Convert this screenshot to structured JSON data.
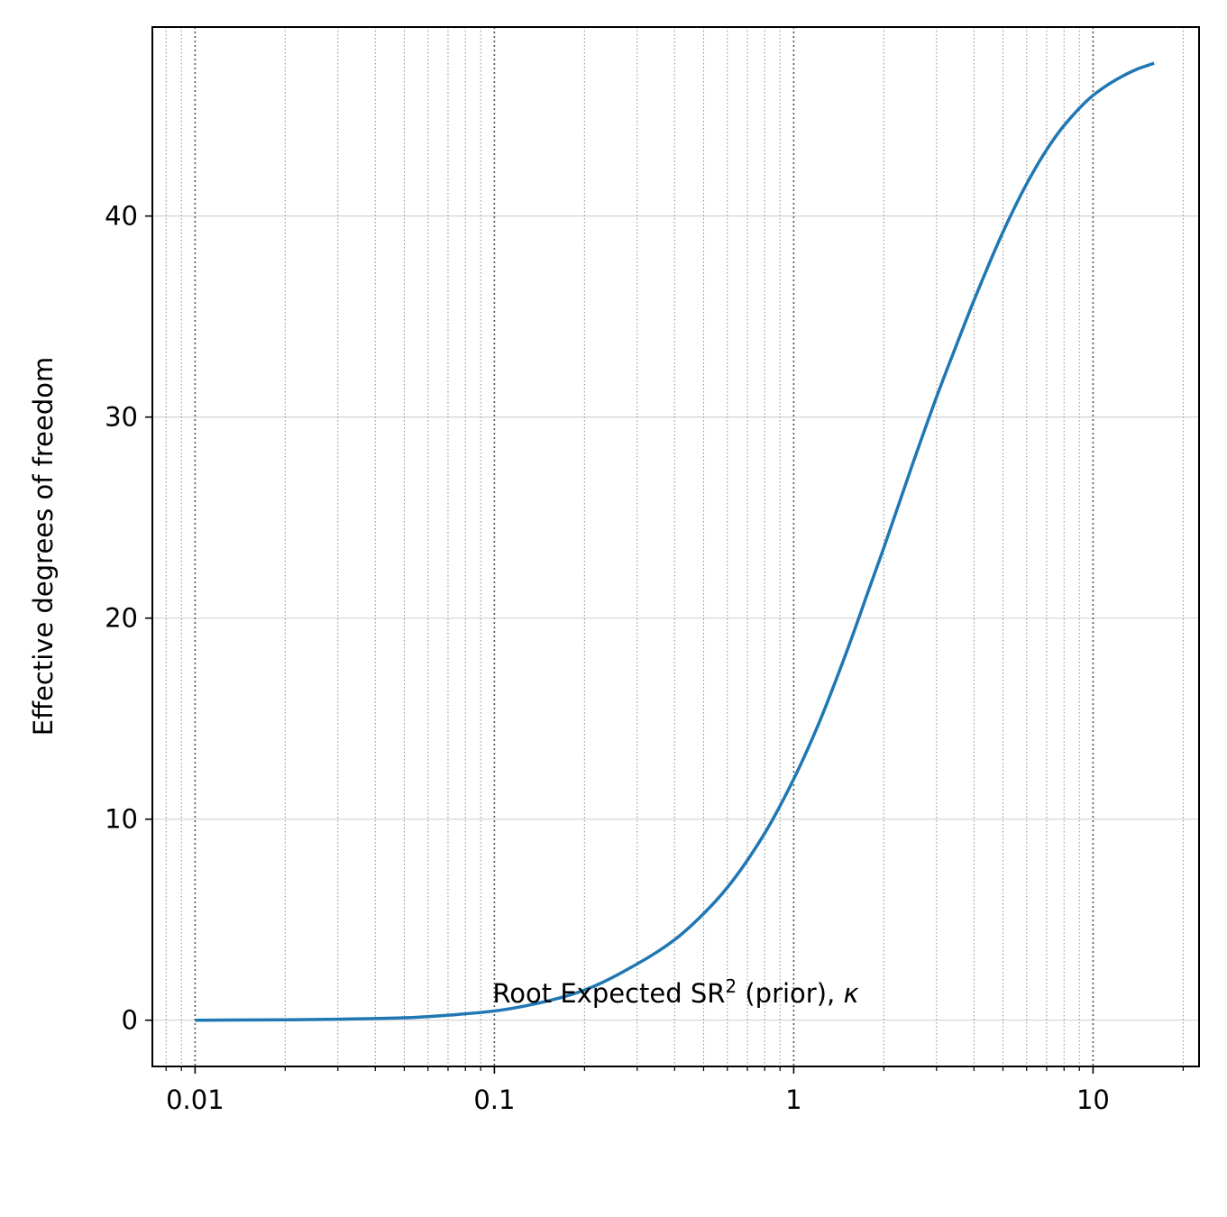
{
  "chart_data": {
    "type": "line",
    "xlabel_main": "Root Expected SR",
    "xlabel_sup": "2",
    "xlabel_rest": " (prior), ",
    "xlabel_symbol": "κ",
    "ylabel": "Effective degrees of freedom",
    "x_scale": "log",
    "xlim": [
      0.0072,
      22.6
    ],
    "ylim": [
      -2.3,
      49.4
    ],
    "x_ticks": [
      {
        "value": 0.01,
        "label": "0.01"
      },
      {
        "value": 0.1,
        "label": "0.1"
      },
      {
        "value": 1,
        "label": "1"
      },
      {
        "value": 10,
        "label": "10"
      }
    ],
    "y_ticks": [
      {
        "value": 0,
        "label": "0"
      },
      {
        "value": 10,
        "label": "10"
      },
      {
        "value": 20,
        "label": "20"
      },
      {
        "value": 30,
        "label": "30"
      },
      {
        "value": 40,
        "label": "40"
      }
    ],
    "grid": {
      "x_major": true,
      "x_minor": true,
      "y_major": true
    },
    "series": [
      {
        "color": "#1f77b4",
        "x": [
          0.01,
          0.02,
          0.03,
          0.05,
          0.07,
          0.1,
          0.15,
          0.2,
          0.3,
          0.4,
          0.5,
          0.6,
          0.8,
          1.0,
          1.2,
          1.5,
          1.8,
          2.0,
          2.5,
          3.0,
          3.5,
          4.0,
          5.0,
          6.0,
          7.0,
          8.0,
          10.0,
          12.0,
          14.0,
          16.0
        ],
        "y": [
          0.0,
          0.02,
          0.05,
          0.12,
          0.25,
          0.46,
          0.95,
          1.5,
          2.8,
          4.0,
          5.3,
          6.6,
          9.3,
          12.0,
          14.6,
          18.3,
          21.6,
          23.5,
          27.7,
          31.0,
          33.6,
          35.8,
          39.2,
          41.6,
          43.3,
          44.5,
          46.0,
          46.8,
          47.3,
          47.6
        ]
      }
    ]
  }
}
